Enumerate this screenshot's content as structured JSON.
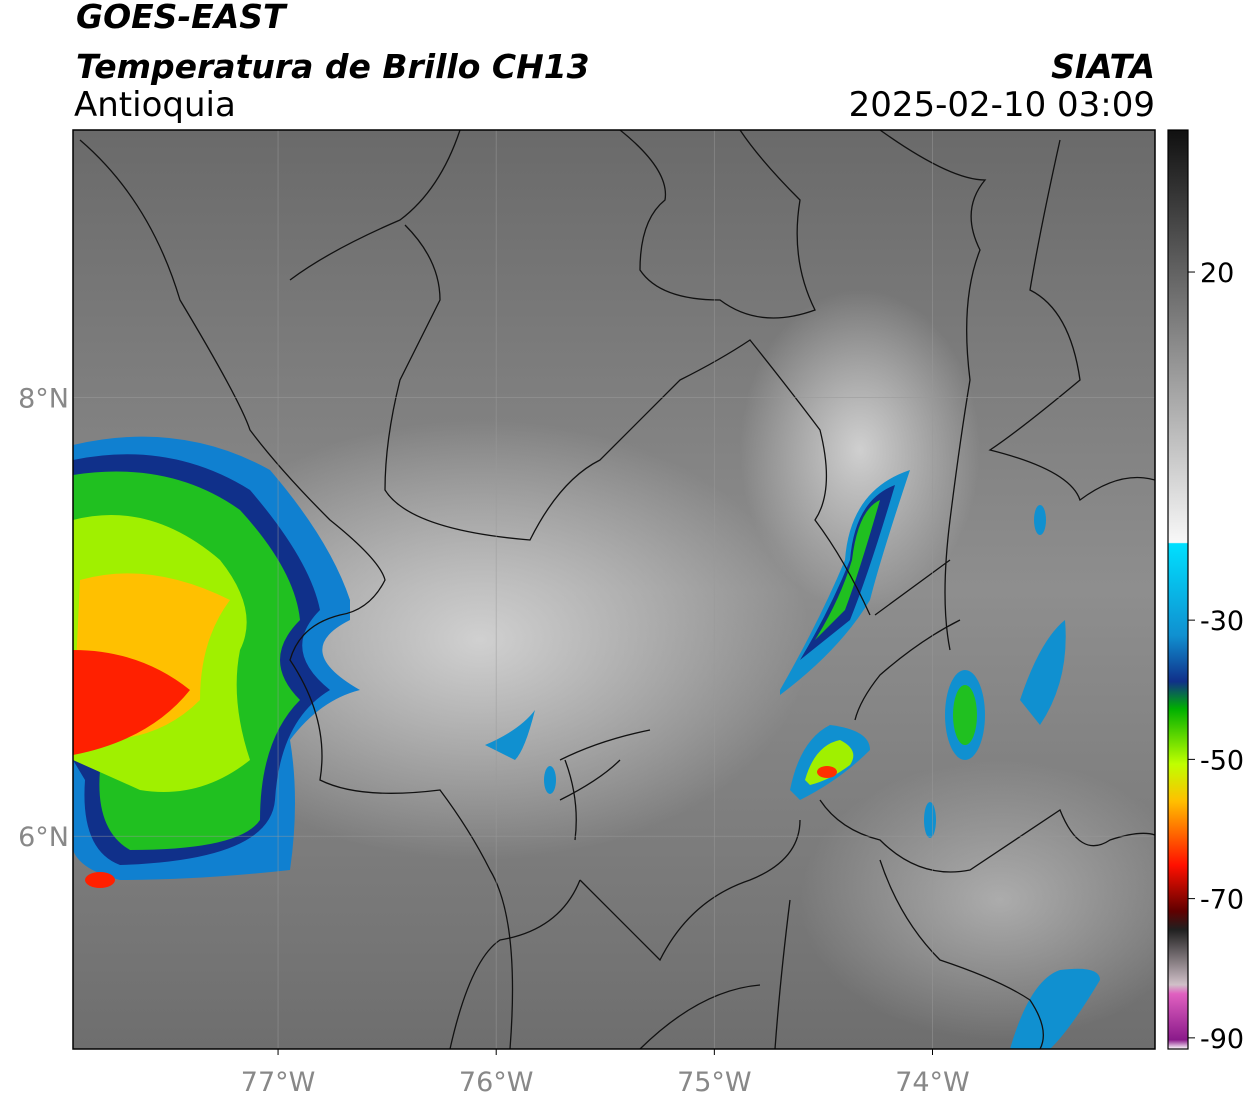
{
  "header": {
    "satellite": "GOES-EAST",
    "product": "Temperatura de Brillo CH13",
    "region": "Antioquia",
    "source": "SIATA",
    "datetime": "2025-02-10 03:09"
  },
  "map": {
    "xlim": [
      -77.94,
      -72.98
    ],
    "ylim": [
      5.03,
      9.22
    ],
    "xticks": [
      {
        "value": -77,
        "label": "77°W"
      },
      {
        "value": -76,
        "label": "76°W"
      },
      {
        "value": -75,
        "label": "75°W"
      },
      {
        "value": -74,
        "label": "74°W"
      }
    ],
    "yticks": [
      {
        "value": 8,
        "label": "8°N"
      },
      {
        "value": 6,
        "label": "6°N"
      }
    ]
  },
  "colorbar": {
    "lim": [
      -91.6,
      40.4
    ],
    "ticks": [
      20,
      -30,
      -50,
      -70,
      -90
    ]
  }
}
